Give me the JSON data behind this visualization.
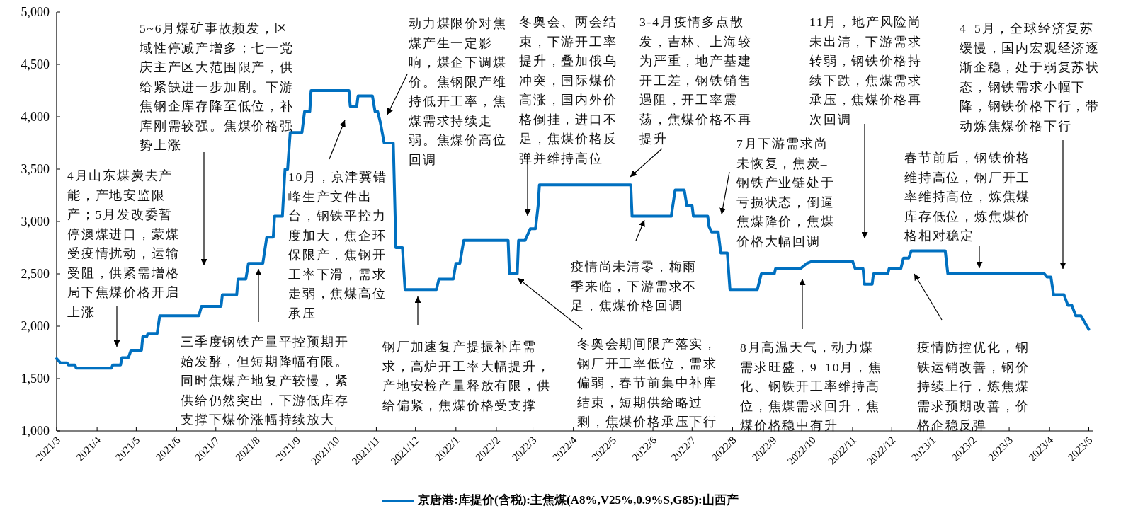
{
  "chart_data": {
    "type": "line",
    "x": [
      "2021-03-01",
      "2021-03-04",
      "2021-03-09",
      "2021-03-10",
      "2021-03-15",
      "2021-03-16",
      "2021-04-12",
      "2021-04-13",
      "2021-04-19",
      "2021-04-20",
      "2021-04-25",
      "2021-04-27",
      "2021-05-05",
      "2021-05-06",
      "2021-05-09",
      "2021-05-10",
      "2021-05-17",
      "2021-05-19",
      "2021-06-18",
      "2021-06-20",
      "2021-07-05",
      "2021-07-06",
      "2021-07-17",
      "2021-07-18",
      "2021-07-24",
      "2021-07-26",
      "2021-08-06",
      "2021-08-09",
      "2021-08-14",
      "2021-08-15",
      "2021-08-21",
      "2021-08-23",
      "2021-08-25",
      "2021-08-27",
      "2021-09-05",
      "2021-09-07",
      "2021-09-11",
      "2021-09-12",
      "2021-10-11",
      "2021-10-12",
      "2021-10-17",
      "2021-10-18",
      "2021-10-29",
      "2021-10-31",
      "2021-11-02",
      "2021-11-04",
      "2021-11-07",
      "2021-11-14",
      "2021-11-16",
      "2021-11-21",
      "2021-11-23",
      "2021-12-17",
      "2021-12-19",
      "2021-12-30",
      "2022-01-01",
      "2022-01-04",
      "2022-01-07",
      "2022-02-10",
      "2022-02-11",
      "2022-02-17",
      "2022-02-18",
      "2022-02-23",
      "2022-02-27",
      "2022-03-03",
      "2022-03-05",
      "2022-03-06",
      "2022-05-15",
      "2022-05-16",
      "2022-06-15",
      "2022-06-18",
      "2022-06-25",
      "2022-06-27",
      "2022-07-01",
      "2022-07-02",
      "2022-07-13",
      "2022-07-14",
      "2022-07-16",
      "2022-07-21",
      "2022-07-23",
      "2022-07-28",
      "2022-07-30",
      "2022-08-20",
      "2022-08-23",
      "2022-09-02",
      "2022-09-03",
      "2022-09-22",
      "2022-09-27",
      "2022-10-01",
      "2022-11-01",
      "2022-11-03",
      "2022-11-09",
      "2022-11-10",
      "2022-11-16",
      "2022-11-17",
      "2022-11-28",
      "2022-11-29",
      "2022-12-08",
      "2022-12-10",
      "2022-12-14",
      "2022-12-16",
      "2023-01-11",
      "2023-01-13",
      "2023-03-28",
      "2023-03-30",
      "2023-04-02",
      "2023-04-04",
      "2023-04-12",
      "2023-04-15",
      "2023-04-18",
      "2023-04-21",
      "2023-04-25",
      "2023-05-01"
    ],
    "series": [
      {
        "name": "京唐港:库提价(含税):主焦煤(A8%,V25%,0.9%S,G85):山西产",
        "color": "#0070c0",
        "values": [
          1690,
          1650,
          1650,
          1630,
          1630,
          1600,
          1600,
          1630,
          1630,
          1700,
          1700,
          1770,
          1770,
          1900,
          1900,
          1930,
          1930,
          2100,
          2100,
          2190,
          2190,
          2300,
          2300,
          2450,
          2450,
          2600,
          2600,
          2850,
          2850,
          3050,
          3050,
          3500,
          3500,
          3850,
          3850,
          4050,
          4050,
          4250,
          4250,
          4100,
          4100,
          4200,
          4200,
          4050,
          4050,
          3950,
          3750,
          3750,
          2750,
          2750,
          2350,
          2350,
          2450,
          2450,
          2600,
          2600,
          2820,
          2820,
          2500,
          2500,
          2820,
          2820,
          2930,
          2930,
          3150,
          3350,
          3350,
          3050,
          3050,
          3300,
          3300,
          3150,
          3150,
          3050,
          3050,
          2950,
          2900,
          2900,
          2700,
          2700,
          2350,
          2350,
          2500,
          2500,
          2550,
          2550,
          2600,
          2620,
          2620,
          2550,
          2550,
          2400,
          2400,
          2500,
          2500,
          2550,
          2550,
          2650,
          2650,
          2720,
          2720,
          2500,
          2500,
          2470,
          2470,
          2300,
          2300,
          2200,
          2200,
          2100,
          2100,
          1970
        ]
      }
    ],
    "xlim": [
      "2021-03-01",
      "2023-05-04"
    ],
    "xticks": [
      {
        "value": "2021-03-01",
        "label": "2021/3"
      },
      {
        "value": "2021-04-01",
        "label": "2021/4"
      },
      {
        "value": "2021-05-01",
        "label": "2021/5"
      },
      {
        "value": "2021-06-01",
        "label": "2021/6"
      },
      {
        "value": "2021-07-01",
        "label": "2021/7"
      },
      {
        "value": "2021-08-01",
        "label": "2021/8"
      },
      {
        "value": "2021-09-01",
        "label": "2021/9"
      },
      {
        "value": "2021-10-01",
        "label": "2021/10"
      },
      {
        "value": "2021-11-01",
        "label": "2021/11"
      },
      {
        "value": "2021-12-01",
        "label": "2021/12"
      },
      {
        "value": "2022-01-01",
        "label": "2022/1"
      },
      {
        "value": "2022-02-01",
        "label": "2022/2"
      },
      {
        "value": "2022-03-01",
        "label": "2022/3"
      },
      {
        "value": "2022-04-01",
        "label": "2022/4"
      },
      {
        "value": "2022-05-01",
        "label": "2022/5"
      },
      {
        "value": "2022-06-01",
        "label": "2022/6"
      },
      {
        "value": "2022-07-01",
        "label": "2022/7"
      },
      {
        "value": "2022-08-01",
        "label": "2022/8"
      },
      {
        "value": "2022-09-01",
        "label": "2022/9"
      },
      {
        "value": "2022-10-01",
        "label": "2022/10"
      },
      {
        "value": "2022-11-01",
        "label": "2022/11"
      },
      {
        "value": "2022-12-01",
        "label": "2022/12"
      },
      {
        "value": "2023-01-01",
        "label": "2023/1"
      },
      {
        "value": "2023-02-01",
        "label": "2023/2"
      },
      {
        "value": "2023-03-01",
        "label": "2023/3"
      },
      {
        "value": "2023-04-01",
        "label": "2023/4"
      },
      {
        "value": "2023-05-01",
        "label": "2023/5"
      }
    ],
    "ylim": [
      1000,
      5000
    ],
    "yticks": [
      {
        "value": 1000,
        "label": "1,000"
      },
      {
        "value": 1500,
        "label": "1,500"
      },
      {
        "value": 2000,
        "label": "2,000"
      },
      {
        "value": 2500,
        "label": "2,500"
      },
      {
        "value": 3000,
        "label": "3,000"
      },
      {
        "value": 3500,
        "label": "3,500"
      },
      {
        "value": 4000,
        "label": "4,000"
      },
      {
        "value": 4500,
        "label": "4,500"
      },
      {
        "value": 5000,
        "label": "5,000"
      }
    ],
    "grid": false,
    "legend": "bottom",
    "annotations": [
      "4月山东煤炭去产能，产地安监限产；5月发改委暂停澳煤进口，蒙煤受疫情扰动，运输受阻，供紧需增格局下焦煤价格开启上涨",
      "5~6月煤矿事故频发，区域性停减产增多；七一党庆主产区大范围限产，供给紧缺进一步加剧。下游焦钢企库存降至低位，补库刚需较强。焦煤价格强势上涨",
      "三季度钢铁产量平控预期开始发酵，但短期降幅有限。同时焦煤产地复产较慢，紧供给仍然突出，下游低库存支撑下煤价涨幅持续放大",
      "10月，京津冀错峰生产文件出台，钢铁平控力度加大，焦企环保限产，焦钢开工率下滑，需求走弱，焦煤高位承压",
      "动力煤限价对焦煤产生一定影响，煤企下调煤价。焦钢限产维持低开工率，焦煤需求持续走弱。焦煤价高位回调",
      "冬奥会、两会结束，下游开工率提升，叠加俄乌冲突，国际煤价高涨，国内外价格倒挂，进口不足，焦煤价格反弹并维持高位",
      "3-4月疫情多点散发，吉林、上海较为严重，地产基建开工差，钢铁销售遇阻，开工率震荡，焦煤价格不再提升",
      "疫情尚未清零，梅雨季来临，下游需求不足，焦煤价格回调",
      "冬奥会期间限产落实，钢厂开工率低位，需求偏弱，春节前集中补库结束，短期供给略过剩，焦煤价格承压下行",
      "钢厂加速复产提振补库需求，高炉开工率大幅提升，产地安检产量释放有限，供给偏紧，焦煤价格受支撑",
      "7月下游需求尚未恢复，焦炭–钢铁产业链处于亏损状态，倒逼焦煤降价，焦煤价格大幅回调",
      "11月，地产风险尚未出清，下游需求转弱，钢铁价格持续下跌，焦煤需求承压，焦煤价格再次回调",
      "8月高温天气，动力煤需求旺盛，9–10月，焦化、钢铁开工率维持高位，焦煤需求回升，焦煤价格稳中有升",
      "春节前后，钢铁价格维持高位，钢厂开工率维持高位，炼焦煤库存低位，炼焦煤价格相对稳定",
      "疫情防控优化，钢铁运销改善，钢价持续上行，炼焦煤需求预期改善，价格企稳反弹",
      "4–5月，全球经济复苏缓慢，国内宏观经济逐渐企稳，处于弱复苏状态，钢铁需求小幅下降，钢铁价格下行，带动炼焦煤价格下行"
    ]
  }
}
